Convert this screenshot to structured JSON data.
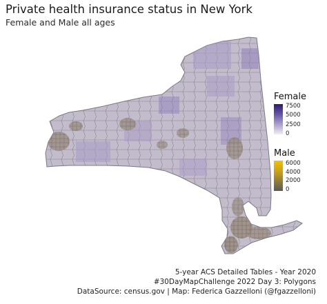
{
  "title": "Private health insurance status in New York",
  "subtitle": "Female and Male all ages",
  "legend": {
    "female": {
      "title": "Female",
      "ticks": [
        "7500",
        "5000",
        "2500",
        "0"
      ],
      "color_low": "#eeeef2",
      "color_high": "#2b1a6e"
    },
    "male": {
      "title": "Male",
      "ticks": [
        "6000",
        "4000",
        "2000",
        "0"
      ],
      "color_low": "#5a5a5a",
      "color_high": "#f2c200"
    }
  },
  "caption": {
    "line1": "5-year ACS Detailed Tables - Year 2020",
    "line2": "#30DayMapChallenge 2022 Day 3: Polygons",
    "line3": "DataSource: census.gov | Map: Federica Gazzelloni (@fgazzelloni)"
  },
  "map_colors": {
    "land": "#c2bccd",
    "land_purple": "#a89ac6",
    "land_dark_purple": "#8b79b8",
    "border": "#8c8688",
    "urban": "#8c7a3c"
  }
}
